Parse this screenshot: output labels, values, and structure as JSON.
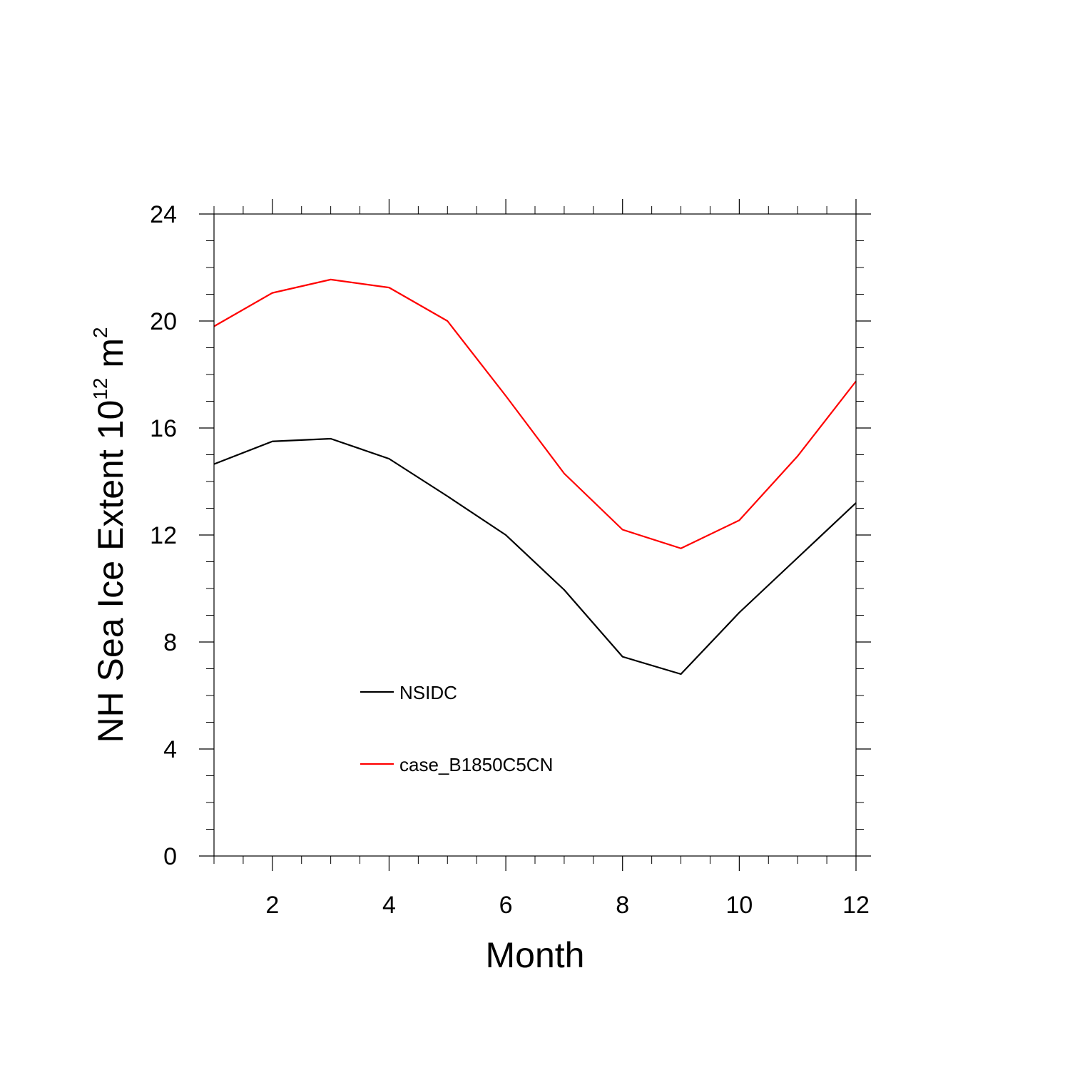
{
  "chart_data": {
    "type": "line",
    "title": "",
    "xlabel": "Month",
    "ylabel": {
      "text": "NH Sea Ice Extent 10",
      "exponent": "12",
      "unit": " m",
      "unit_exponent": "2"
    },
    "xlim": [
      1,
      12
    ],
    "ylim": [
      0,
      24
    ],
    "xticks": [
      2,
      4,
      6,
      8,
      10,
      12
    ],
    "yticks": [
      0,
      4,
      8,
      12,
      16,
      20,
      24
    ],
    "x": [
      1,
      2,
      3,
      4,
      5,
      6,
      7,
      8,
      9,
      10,
      11,
      12
    ],
    "series": [
      {
        "name": "NSIDC",
        "color": "#000000",
        "values": [
          14.65,
          15.5,
          15.6,
          14.85,
          13.45,
          12.0,
          9.95,
          7.45,
          6.8,
          9.1,
          11.15,
          13.2
        ]
      },
      {
        "name": "case_B1850C5CN",
        "color": "#ff0000",
        "values": [
          19.8,
          21.05,
          21.55,
          21.25,
          20.0,
          17.2,
          14.3,
          12.2,
          11.5,
          12.55,
          14.95,
          17.75
        ]
      }
    ],
    "legend": "lower-left inside plot",
    "grid": false
  }
}
